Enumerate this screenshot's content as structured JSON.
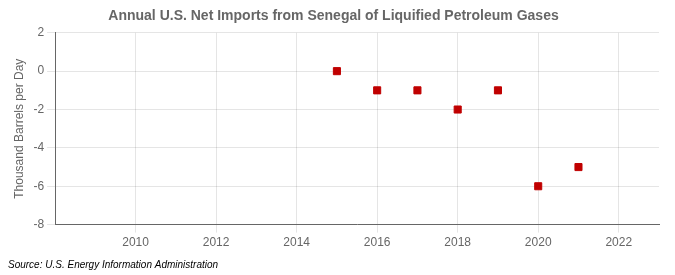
{
  "chart_data": {
    "type": "scatter",
    "title": "Annual U.S. Net Imports from Senegal of Liquified Petroleum Gases",
    "ylabel": "Thousand Barrels per Day",
    "annotations": [
      "Source: U.S. Energy Information Administration"
    ],
    "x": [
      2015,
      2016,
      2017,
      2018,
      2019,
      2020,
      2021
    ],
    "values": [
      0,
      -1,
      -1,
      -2,
      -1,
      -6,
      -5
    ],
    "color": "#c00000",
    "marker": "square",
    "xlim": [
      2008,
      2023
    ],
    "xticks": [
      2010,
      2012,
      2014,
      2016,
      2018,
      2020,
      2022
    ],
    "ylim": [
      -8,
      2
    ],
    "yticks": [
      -8,
      -6,
      -4,
      -2,
      0,
      2
    ],
    "grid": true
  }
}
